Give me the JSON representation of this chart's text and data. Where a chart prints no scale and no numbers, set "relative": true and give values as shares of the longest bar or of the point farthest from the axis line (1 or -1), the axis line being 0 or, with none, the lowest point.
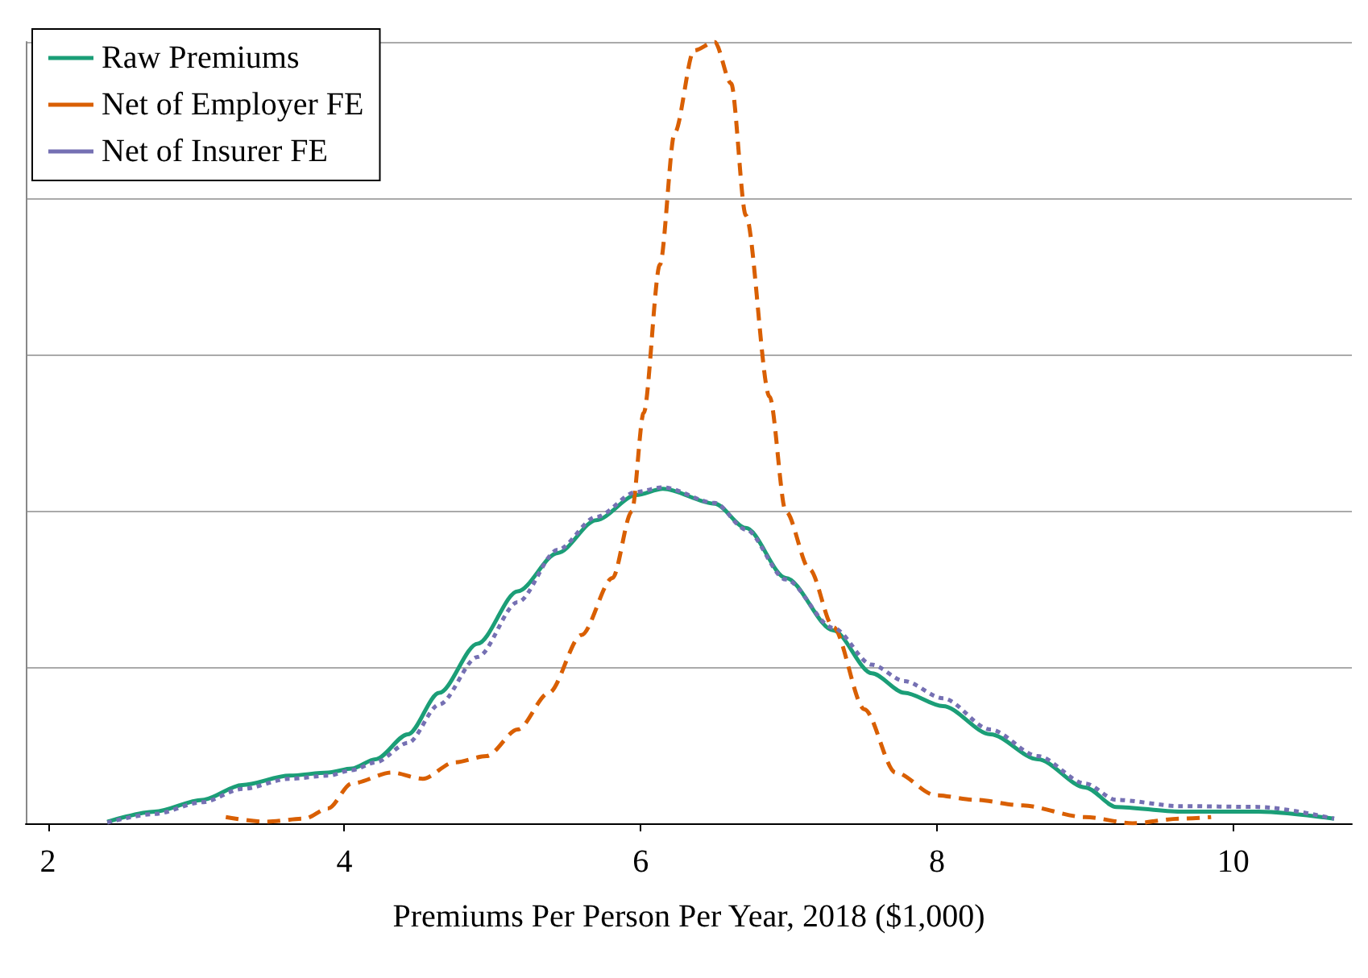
{
  "chart_data": {
    "type": "line",
    "relative": true,
    "xlabel": "Premiums Per Person Per Year, 2018 ($1,000)",
    "xlim": [
      1.85,
      10.8
    ],
    "xticks": [
      2,
      4,
      6,
      8,
      10
    ],
    "grid": "y",
    "legend": "top left",
    "marker": "none",
    "series": [
      {
        "name": "Raw Premiums",
        "color": "#1b9e77",
        "line_style": "solid",
        "x": [
          2.4,
          2.72,
          3.04,
          3.31,
          3.63,
          3.89,
          4.05,
          4.21,
          4.43,
          4.64,
          4.9,
          5.17,
          5.44,
          5.7,
          5.97,
          6.15,
          6.5,
          6.71,
          6.98,
          7.3,
          7.56,
          7.78,
          8.04,
          8.36,
          8.68,
          9.0,
          9.21,
          9.64,
          10.17,
          10.68
        ],
        "values": [
          0.002,
          0.015,
          0.03,
          0.049,
          0.061,
          0.065,
          0.07,
          0.082,
          0.114,
          0.167,
          0.23,
          0.297,
          0.346,
          0.388,
          0.42,
          0.428,
          0.409,
          0.378,
          0.314,
          0.247,
          0.192,
          0.167,
          0.15,
          0.114,
          0.082,
          0.046,
          0.021,
          0.015,
          0.015,
          0.006
        ]
      },
      {
        "name": "Net of Employer FE",
        "color": "#d95f02",
        "line_style": "dashed",
        "x": [
          3.2,
          3.47,
          3.73,
          3.89,
          4.05,
          4.32,
          4.53,
          4.74,
          4.96,
          5.17,
          5.38,
          5.6,
          5.81,
          5.94,
          6.02,
          6.13,
          6.23,
          6.36,
          6.5,
          6.61,
          6.71,
          6.87,
          6.98,
          7.14,
          7.3,
          7.51,
          7.72,
          7.99,
          8.26,
          8.57,
          9.0,
          9.32,
          9.64,
          9.85
        ],
        "values": [
          0.008,
          0.002,
          0.006,
          0.019,
          0.051,
          0.065,
          0.057,
          0.078,
          0.086,
          0.12,
          0.167,
          0.241,
          0.314,
          0.399,
          0.525,
          0.715,
          0.884,
          0.989,
          1,
          0.947,
          0.778,
          0.546,
          0.399,
          0.325,
          0.251,
          0.146,
          0.065,
          0.036,
          0.03,
          0.023,
          0.008,
          0,
          0.006,
          0.008
        ]
      },
      {
        "name": "Net of Insurer FE",
        "color": "#7570b3",
        "line_style": "dotted",
        "x": [
          2.4,
          2.72,
          3.04,
          3.31,
          3.63,
          3.89,
          4.05,
          4.21,
          4.43,
          4.64,
          4.9,
          5.17,
          5.44,
          5.7,
          5.97,
          6.15,
          6.5,
          6.71,
          6.98,
          7.3,
          7.56,
          7.78,
          8.04,
          8.36,
          8.68,
          9.0,
          9.21,
          9.64,
          10.17,
          10.68
        ],
        "values": [
          0.001,
          0.012,
          0.027,
          0.044,
          0.057,
          0.061,
          0.068,
          0.078,
          0.103,
          0.152,
          0.213,
          0.283,
          0.35,
          0.392,
          0.424,
          0.43,
          0.41,
          0.376,
          0.312,
          0.25,
          0.203,
          0.182,
          0.16,
          0.12,
          0.086,
          0.051,
          0.03,
          0.022,
          0.021,
          0.006
        ]
      }
    ]
  }
}
